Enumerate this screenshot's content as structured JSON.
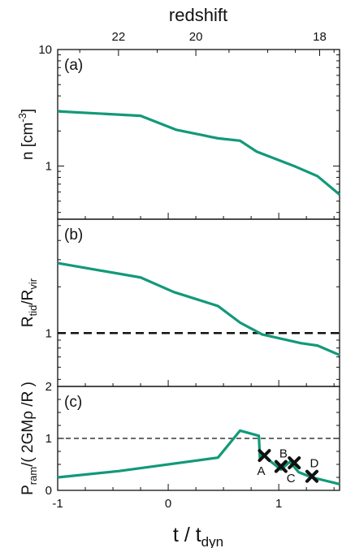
{
  "figure": {
    "top_axis_label": "redshift",
    "bottom_axis_label": {
      "main": "t / t",
      "sub": "dyn"
    },
    "accent_color": "#12997a"
  },
  "chart_data": [
    {
      "type": "line",
      "panel": "(a)",
      "ylabel": {
        "main": "n [cm",
        "sup": "-3",
        "tail": "]"
      },
      "yscale": "log",
      "ylim": [
        0.35,
        10
      ],
      "xlim": [
        -1,
        1.55
      ],
      "yticks": [
        {
          "v": 1,
          "label": "1"
        },
        {
          "v": 10,
          "label": "10"
        }
      ],
      "top_ticks": [
        {
          "z": 22,
          "x": -0.45
        },
        {
          "z": 20,
          "x": 0.25
        },
        {
          "z": 18,
          "x": 1.37
        }
      ],
      "series": [
        {
          "x": [
            -1.0,
            -0.25,
            0.07,
            0.45,
            0.65,
            0.8,
            1.15,
            1.35,
            1.55
          ],
          "y": [
            2.95,
            2.7,
            2.05,
            1.73,
            1.65,
            1.33,
            0.99,
            0.82,
            0.57
          ]
        }
      ]
    },
    {
      "type": "line",
      "panel": "(b)",
      "ylabel": {
        "main": "R",
        "sub1": "tid",
        "mid": "/R",
        "sub2": "vir"
      },
      "yscale": "log",
      "ylim": [
        0.45,
        5.5
      ],
      "xlim": [
        -1,
        1.55
      ],
      "yticks": [
        {
          "v": 1,
          "label": "1"
        }
      ],
      "reference_line": {
        "y": 1,
        "style": "dashed"
      },
      "series": [
        {
          "x": [
            -1.0,
            -0.25,
            0.05,
            0.45,
            0.65,
            0.85,
            1.2,
            1.35,
            1.55
          ],
          "y": [
            2.85,
            2.3,
            1.85,
            1.5,
            1.17,
            0.98,
            0.86,
            0.83,
            0.72
          ]
        }
      ]
    },
    {
      "type": "line",
      "panel": "(c)",
      "ylabel": {
        "main": "P",
        "sub": "ram",
        "tail": "/( 2GMρ /R )"
      },
      "yscale": "linear",
      "ylim": [
        0,
        2
      ],
      "xlim": [
        -1,
        1.55
      ],
      "yticks": [
        {
          "v": 0,
          "label": "0"
        },
        {
          "v": 1,
          "label": "1"
        },
        {
          "v": 2,
          "label": "2"
        }
      ],
      "xticks": [
        {
          "v": -1,
          "label": "-1"
        },
        {
          "v": 0,
          "label": "0"
        },
        {
          "v": 1,
          "label": "1"
        }
      ],
      "reference_line": {
        "y": 1,
        "style": "dashed"
      },
      "series": [
        {
          "x": [
            -1.0,
            -0.45,
            0.45,
            0.65,
            0.82,
            0.83,
            0.86,
            0.93,
            1.02,
            1.1,
            1.18,
            1.3,
            1.55
          ],
          "y": [
            0.25,
            0.37,
            0.63,
            1.15,
            1.05,
            0.6,
            0.7,
            0.55,
            0.4,
            0.55,
            0.35,
            0.25,
            0.12
          ]
        }
      ],
      "markers": [
        {
          "label": "A",
          "x": 0.87,
          "y": 0.67,
          "label_pos": "below"
        },
        {
          "label": "B",
          "x": 1.02,
          "y": 0.46,
          "label_pos": "above"
        },
        {
          "label": "C",
          "x": 1.14,
          "y": 0.53,
          "label_pos": "below"
        },
        {
          "label": "D",
          "x": 1.3,
          "y": 0.27,
          "label_pos": "above"
        }
      ]
    }
  ]
}
